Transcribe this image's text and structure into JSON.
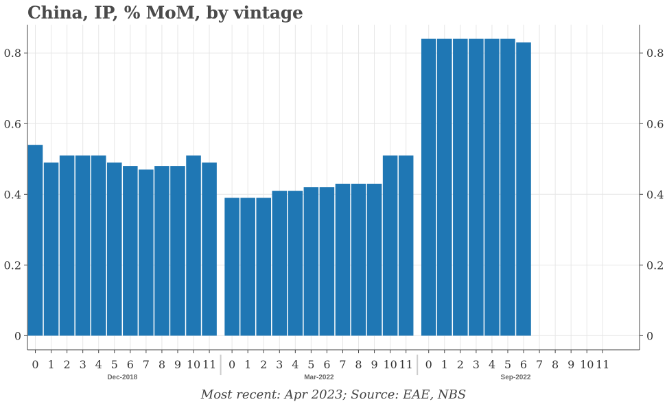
{
  "title": "China, IP, % MoM, by vintage",
  "footer": "Most recent: Apr 2023; Source: EAE, NBS",
  "colors": {
    "bar": "#1f77b4",
    "grid": "#e6e6e6",
    "axis": "#444444"
  },
  "chart_data": {
    "type": "bar",
    "ylim": [
      -0.04,
      0.88
    ],
    "yticks": [
      0,
      0.2,
      0.4,
      0.6,
      0.8
    ],
    "ytick_labels": [
      "0",
      "0.2",
      "0.4",
      "0.6",
      "0.8"
    ],
    "grid": true,
    "groups": [
      {
        "name": "Dec-2018",
        "categories": [
          "0",
          "1",
          "2",
          "3",
          "4",
          "5",
          "6",
          "7",
          "8",
          "9",
          "10",
          "11"
        ],
        "values": [
          0.54,
          0.49,
          0.51,
          0.51,
          0.51,
          0.49,
          0.48,
          0.47,
          0.48,
          0.48,
          0.51,
          0.49
        ]
      },
      {
        "name": "Mar-2022",
        "categories": [
          "0",
          "1",
          "2",
          "3",
          "4",
          "5",
          "6",
          "7",
          "8",
          "9",
          "10",
          "11"
        ],
        "values": [
          0.39,
          0.39,
          0.39,
          0.41,
          0.41,
          0.42,
          0.42,
          0.43,
          0.43,
          0.43,
          0.51,
          0.51
        ]
      },
      {
        "name": "Sep-2022",
        "categories": [
          "0",
          "1",
          "2",
          "3",
          "4",
          "5",
          "6",
          "7",
          "8",
          "9",
          "10",
          "11"
        ],
        "values": [
          0.84,
          0.84,
          0.84,
          0.84,
          0.84,
          0.84,
          0.83,
          null,
          null,
          null,
          null,
          null
        ]
      }
    ]
  }
}
